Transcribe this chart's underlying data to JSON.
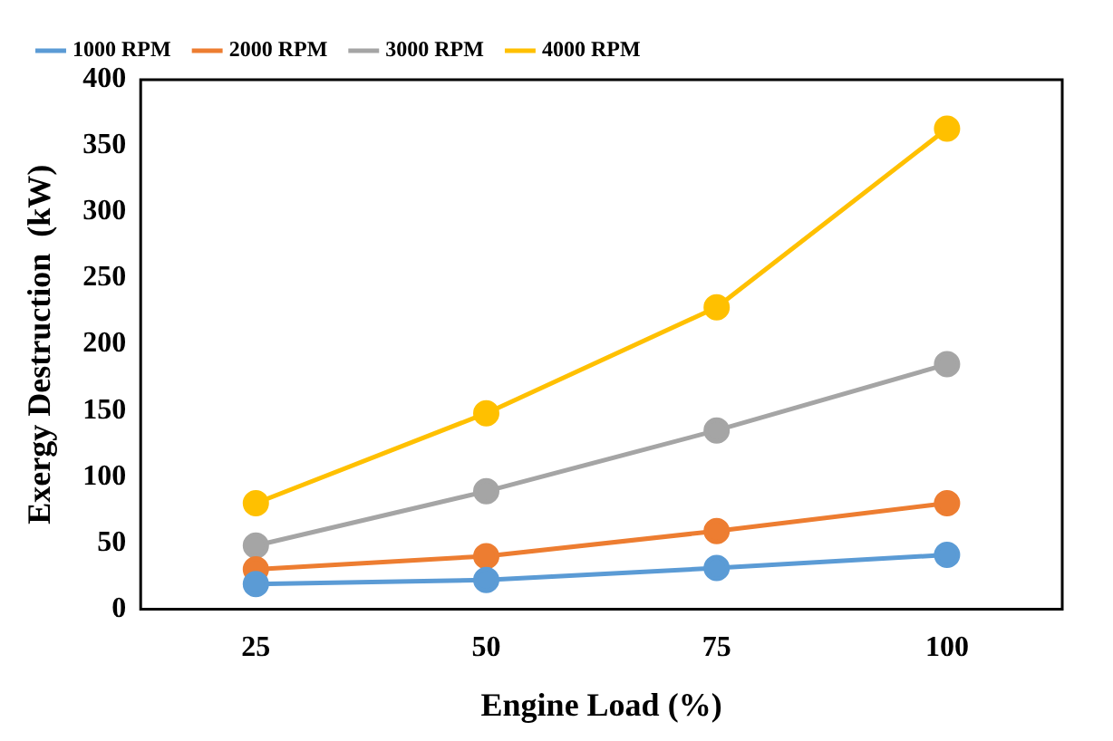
{
  "chart_data": {
    "type": "line",
    "xlabel": "Engine Load (%)",
    "ylabel": "Exergy Destruction  (kW)",
    "categories": [
      "25",
      "50",
      "75",
      "100"
    ],
    "series": [
      {
        "name": "1000 RPM",
        "color": "#5b9bd5",
        "values": [
          19,
          22,
          31,
          41
        ]
      },
      {
        "name": "2000 RPM",
        "color": "#ed7d31",
        "values": [
          30,
          40,
          59,
          80
        ]
      },
      {
        "name": "3000 RPM",
        "color": "#a5a5a5",
        "values": [
          48,
          89,
          135,
          185
        ]
      },
      {
        "name": "4000 RPM",
        "color": "#ffc000",
        "values": [
          80,
          148,
          228,
          363
        ]
      }
    ],
    "ylim": [
      0,
      400
    ],
    "yticks": [
      0,
      50,
      100,
      150,
      200,
      250,
      300,
      350,
      400
    ],
    "grid": false,
    "legend": "top",
    "marker": "circle",
    "line_style": "solid"
  }
}
